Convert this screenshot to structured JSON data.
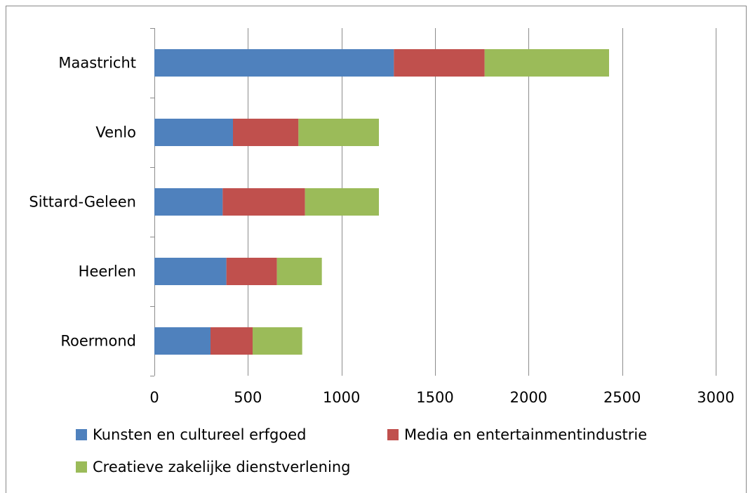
{
  "chart_data": {
    "type": "bar",
    "orientation": "horizontal",
    "stacked": true,
    "categories": [
      "Maastricht",
      "Venlo",
      "Sittard-Geleen",
      "Heerlen",
      "Roermond"
    ],
    "series": [
      {
        "name": "Kunsten en cultureel erfgoed",
        "color": "#4F81BD",
        "values": [
          1280,
          420,
          365,
          385,
          300
        ]
      },
      {
        "name": "Media en entertainmentindustrie",
        "color": "#C0504D",
        "values": [
          485,
          350,
          440,
          270,
          225
        ]
      },
      {
        "name": "Creatieve zakelijke dienstverlening",
        "color": "#9BBB59",
        "values": [
          665,
          430,
          395,
          240,
          265
        ]
      }
    ],
    "x_ticks": [
      "0",
      "500",
      "1000",
      "1500",
      "2000",
      "2500",
      "3000"
    ],
    "xlim": [
      0,
      3000
    ],
    "grid": true,
    "legend_position": "bottom"
  }
}
